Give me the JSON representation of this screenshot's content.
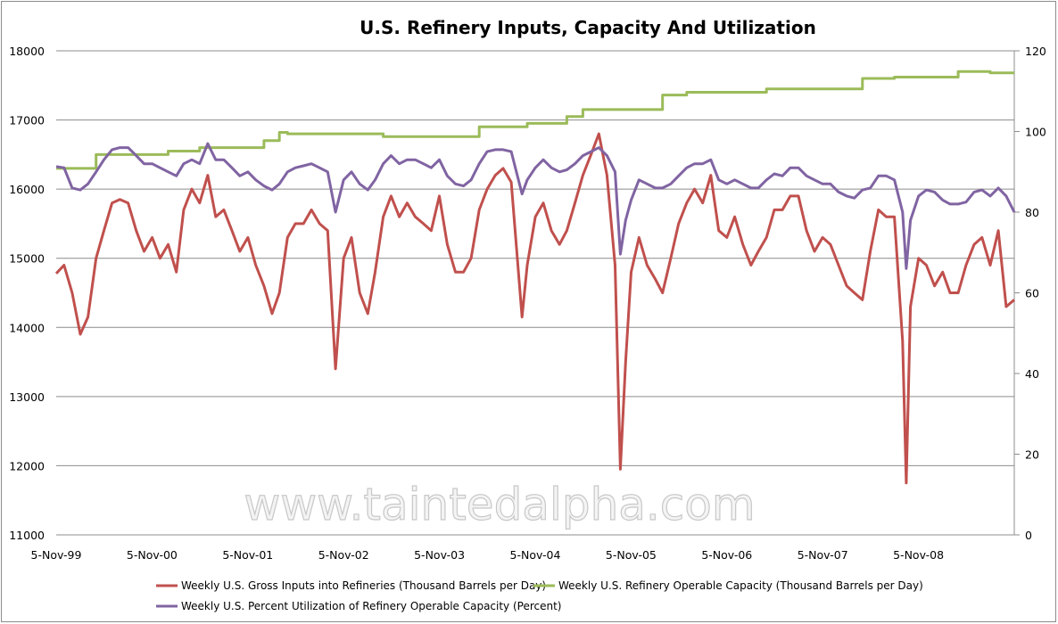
{
  "chart_data": {
    "type": "line",
    "title": "U.S. Refinery Inputs, Capacity And Utilization",
    "watermark": "www.taintedalpha.com",
    "grid": true,
    "legend_position": "bottom",
    "x_ticks": [
      "5-Nov-99",
      "5-Nov-00",
      "5-Nov-01",
      "5-Nov-02",
      "5-Nov-03",
      "5-Nov-04",
      "5-Nov-05",
      "5-Nov-06",
      "5-Nov-07",
      "5-Nov-08"
    ],
    "xlim": [
      "1999-11-05",
      "2009-11-05"
    ],
    "y_left": {
      "ylim": [
        11000,
        18000
      ],
      "ticks": [
        "11000",
        "12000",
        "13000",
        "14000",
        "15000",
        "16000",
        "17000",
        "18000"
      ]
    },
    "y_right": {
      "ylim": [
        0,
        120
      ],
      "ticks": [
        "0",
        "20",
        "40",
        "60",
        "80",
        "100",
        "120"
      ]
    },
    "colors": {
      "gross_inputs": "#C0504D",
      "capacity": "#9BBB59",
      "utilization": "#8064A2",
      "grid": "#8c8c8c"
    },
    "series": [
      {
        "name": "Weekly U.S. Gross Inputs into Refineries  (Thousand  Barrels per Day)",
        "axis": "left",
        "color": "#C0504D",
        "step": false,
        "points": [
          [
            "1999-11-05",
            14780
          ],
          [
            "1999-12-05",
            14900
          ],
          [
            "2000-01-05",
            14500
          ],
          [
            "2000-02-05",
            13900
          ],
          [
            "2000-03-05",
            14150
          ],
          [
            "2000-04-05",
            15000
          ],
          [
            "2000-05-05",
            15400
          ],
          [
            "2000-06-05",
            15800
          ],
          [
            "2000-07-05",
            15850
          ],
          [
            "2000-08-05",
            15800
          ],
          [
            "2000-09-05",
            15400
          ],
          [
            "2000-10-05",
            15100
          ],
          [
            "2000-11-05",
            15300
          ],
          [
            "2000-12-05",
            15000
          ],
          [
            "2001-01-05",
            15200
          ],
          [
            "2001-02-05",
            14800
          ],
          [
            "2001-03-05",
            15700
          ],
          [
            "2001-04-05",
            16000
          ],
          [
            "2001-05-05",
            15800
          ],
          [
            "2001-06-05",
            16200
          ],
          [
            "2001-07-05",
            15600
          ],
          [
            "2001-08-05",
            15700
          ],
          [
            "2001-09-05",
            15400
          ],
          [
            "2001-10-05",
            15100
          ],
          [
            "2001-11-05",
            15300
          ],
          [
            "2001-12-05",
            14900
          ],
          [
            "2002-01-05",
            14600
          ],
          [
            "2002-02-05",
            14200
          ],
          [
            "2002-03-05",
            14500
          ],
          [
            "2002-04-05",
            15300
          ],
          [
            "2002-05-05",
            15500
          ],
          [
            "2002-06-05",
            15500
          ],
          [
            "2002-07-05",
            15700
          ],
          [
            "2002-08-05",
            15500
          ],
          [
            "2002-09-05",
            15400
          ],
          [
            "2002-10-05",
            13400
          ],
          [
            "2002-11-05",
            15000
          ],
          [
            "2002-12-05",
            15300
          ],
          [
            "2003-01-05",
            14500
          ],
          [
            "2003-02-05",
            14200
          ],
          [
            "2003-03-05",
            14800
          ],
          [
            "2003-04-05",
            15600
          ],
          [
            "2003-05-05",
            15900
          ],
          [
            "2003-06-05",
            15600
          ],
          [
            "2003-07-05",
            15800
          ],
          [
            "2003-08-05",
            15600
          ],
          [
            "2003-09-05",
            15500
          ],
          [
            "2003-10-05",
            15400
          ],
          [
            "2003-11-05",
            15900
          ],
          [
            "2003-12-05",
            15200
          ],
          [
            "2004-01-05",
            14800
          ],
          [
            "2004-02-05",
            14800
          ],
          [
            "2004-03-05",
            15000
          ],
          [
            "2004-04-05",
            15700
          ],
          [
            "2004-05-05",
            16000
          ],
          [
            "2004-06-05",
            16200
          ],
          [
            "2004-07-05",
            16300
          ],
          [
            "2004-08-05",
            16100
          ],
          [
            "2004-09-15",
            14150
          ],
          [
            "2004-10-05",
            14900
          ],
          [
            "2004-11-05",
            15600
          ],
          [
            "2004-12-05",
            15800
          ],
          [
            "2005-01-05",
            15400
          ],
          [
            "2005-02-05",
            15200
          ],
          [
            "2005-03-05",
            15400
          ],
          [
            "2005-04-05",
            15800
          ],
          [
            "2005-05-05",
            16200
          ],
          [
            "2005-06-05",
            16500
          ],
          [
            "2005-07-05",
            16800
          ],
          [
            "2005-08-05",
            16200
          ],
          [
            "2005-09-05",
            14900
          ],
          [
            "2005-09-25",
            11950
          ],
          [
            "2005-10-15",
            13500
          ],
          [
            "2005-11-05",
            14800
          ],
          [
            "2005-12-05",
            15300
          ],
          [
            "2006-01-05",
            14900
          ],
          [
            "2006-02-05",
            14700
          ],
          [
            "2006-03-05",
            14500
          ],
          [
            "2006-04-05",
            15000
          ],
          [
            "2006-05-05",
            15500
          ],
          [
            "2006-06-05",
            15800
          ],
          [
            "2006-07-05",
            16000
          ],
          [
            "2006-08-05",
            15800
          ],
          [
            "2006-09-05",
            16200
          ],
          [
            "2006-10-05",
            15400
          ],
          [
            "2006-11-05",
            15300
          ],
          [
            "2006-12-05",
            15600
          ],
          [
            "2007-01-05",
            15200
          ],
          [
            "2007-02-05",
            14900
          ],
          [
            "2007-03-05",
            15100
          ],
          [
            "2007-04-05",
            15300
          ],
          [
            "2007-05-05",
            15700
          ],
          [
            "2007-06-05",
            15700
          ],
          [
            "2007-07-05",
            15900
          ],
          [
            "2007-08-05",
            15900
          ],
          [
            "2007-09-05",
            15400
          ],
          [
            "2007-10-05",
            15100
          ],
          [
            "2007-11-05",
            15300
          ],
          [
            "2007-12-05",
            15200
          ],
          [
            "2008-01-05",
            14900
          ],
          [
            "2008-02-05",
            14600
          ],
          [
            "2008-03-05",
            14500
          ],
          [
            "2008-04-05",
            14400
          ],
          [
            "2008-05-05",
            15100
          ],
          [
            "2008-06-05",
            15700
          ],
          [
            "2008-07-05",
            15600
          ],
          [
            "2008-08-05",
            15600
          ],
          [
            "2008-09-05",
            13800
          ],
          [
            "2008-09-19",
            11750
          ],
          [
            "2008-10-05",
            14300
          ],
          [
            "2008-11-05",
            15000
          ],
          [
            "2008-12-05",
            14900
          ],
          [
            "2009-01-05",
            14600
          ],
          [
            "2009-02-05",
            14800
          ],
          [
            "2009-03-05",
            14500
          ],
          [
            "2009-04-05",
            14500
          ],
          [
            "2009-05-05",
            14900
          ],
          [
            "2009-06-05",
            15200
          ],
          [
            "2009-07-05",
            15300
          ],
          [
            "2009-08-05",
            14900
          ],
          [
            "2009-09-05",
            15400
          ],
          [
            "2009-10-05",
            14300
          ],
          [
            "2009-11-05",
            14400
          ]
        ]
      },
      {
        "name": "Weekly U.S. Refinery Operable Capacity  (Thousand  Barrels per Day)",
        "axis": "left",
        "color": "#9BBB59",
        "step": true,
        "points": [
          [
            "1999-11-05",
            16300
          ],
          [
            "2000-04-05",
            16500
          ],
          [
            "2001-01-05",
            16550
          ],
          [
            "2001-05-05",
            16600
          ],
          [
            "2002-01-05",
            16700
          ],
          [
            "2002-03-05",
            16820
          ],
          [
            "2002-04-05",
            16800
          ],
          [
            "2003-04-05",
            16760
          ],
          [
            "2004-04-05",
            16900
          ],
          [
            "2004-10-05",
            16950
          ],
          [
            "2005-03-05",
            17050
          ],
          [
            "2005-05-05",
            17150
          ],
          [
            "2006-03-05",
            17360
          ],
          [
            "2006-06-05",
            17400
          ],
          [
            "2007-04-05",
            17450
          ],
          [
            "2008-04-05",
            17600
          ],
          [
            "2008-08-05",
            17620
          ],
          [
            "2009-04-05",
            17700
          ],
          [
            "2009-08-05",
            17680
          ],
          [
            "2009-11-05",
            17680
          ]
        ]
      },
      {
        "name": "Weekly U.S. Percent Utilization  of Refinery Operable Capacity  (Percent)",
        "axis": "right",
        "color": "#8064A2",
        "step": false,
        "points": [
          [
            "1999-11-05",
            91.3
          ],
          [
            "1999-12-05",
            91
          ],
          [
            "2000-01-05",
            86
          ],
          [
            "2000-02-05",
            85.5
          ],
          [
            "2000-03-05",
            87
          ],
          [
            "2000-04-05",
            90
          ],
          [
            "2000-05-05",
            93
          ],
          [
            "2000-06-05",
            95.5
          ],
          [
            "2000-07-05",
            96
          ],
          [
            "2000-08-05",
            96
          ],
          [
            "2000-09-05",
            94
          ],
          [
            "2000-10-05",
            92
          ],
          [
            "2000-11-05",
            92
          ],
          [
            "2000-12-05",
            91
          ],
          [
            "2001-01-05",
            90
          ],
          [
            "2001-02-05",
            89
          ],
          [
            "2001-03-05",
            92
          ],
          [
            "2001-04-05",
            93
          ],
          [
            "2001-05-05",
            92
          ],
          [
            "2001-06-05",
            97
          ],
          [
            "2001-07-05",
            93
          ],
          [
            "2001-08-05",
            93
          ],
          [
            "2001-09-05",
            91
          ],
          [
            "2001-10-05",
            89
          ],
          [
            "2001-11-05",
            90
          ],
          [
            "2001-12-05",
            88
          ],
          [
            "2002-01-05",
            86.5
          ],
          [
            "2002-02-05",
            85.5
          ],
          [
            "2002-03-05",
            87
          ],
          [
            "2002-04-05",
            90
          ],
          [
            "2002-05-05",
            91
          ],
          [
            "2002-06-05",
            91.5
          ],
          [
            "2002-07-05",
            92
          ],
          [
            "2002-08-05",
            91
          ],
          [
            "2002-09-05",
            90
          ],
          [
            "2002-10-05",
            80
          ],
          [
            "2002-11-05",
            88
          ],
          [
            "2002-12-05",
            90
          ],
          [
            "2003-01-05",
            87
          ],
          [
            "2003-02-05",
            85.5
          ],
          [
            "2003-03-05",
            88
          ],
          [
            "2003-04-05",
            92
          ],
          [
            "2003-05-05",
            94
          ],
          [
            "2003-06-05",
            92
          ],
          [
            "2003-07-05",
            93
          ],
          [
            "2003-08-05",
            93
          ],
          [
            "2003-09-05",
            92
          ],
          [
            "2003-10-05",
            91
          ],
          [
            "2003-11-05",
            93
          ],
          [
            "2003-12-05",
            89
          ],
          [
            "2004-01-05",
            87
          ],
          [
            "2004-02-05",
            86.5
          ],
          [
            "2004-03-05",
            88
          ],
          [
            "2004-04-05",
            92
          ],
          [
            "2004-05-05",
            95
          ],
          [
            "2004-06-05",
            95.5
          ],
          [
            "2004-07-05",
            95.5
          ],
          [
            "2004-08-05",
            95
          ],
          [
            "2004-09-15",
            84.5
          ],
          [
            "2004-10-05",
            88
          ],
          [
            "2004-11-05",
            91
          ],
          [
            "2004-12-05",
            93
          ],
          [
            "2005-01-05",
            91
          ],
          [
            "2005-02-05",
            90
          ],
          [
            "2005-03-05",
            90.5
          ],
          [
            "2005-04-05",
            92
          ],
          [
            "2005-05-05",
            94
          ],
          [
            "2005-06-05",
            95
          ],
          [
            "2005-07-05",
            96
          ],
          [
            "2005-08-05",
            94
          ],
          [
            "2005-09-05",
            90
          ],
          [
            "2005-09-25",
            69.6
          ],
          [
            "2005-10-15",
            78
          ],
          [
            "2005-11-05",
            83
          ],
          [
            "2005-12-05",
            88
          ],
          [
            "2006-01-05",
            87
          ],
          [
            "2006-02-05",
            86
          ],
          [
            "2006-03-05",
            86
          ],
          [
            "2006-04-05",
            87
          ],
          [
            "2006-05-05",
            89
          ],
          [
            "2006-06-05",
            91
          ],
          [
            "2006-07-05",
            92
          ],
          [
            "2006-08-05",
            92
          ],
          [
            "2006-09-05",
            93
          ],
          [
            "2006-10-05",
            88
          ],
          [
            "2006-11-05",
            87
          ],
          [
            "2006-12-05",
            88
          ],
          [
            "2007-01-05",
            87
          ],
          [
            "2007-02-05",
            86
          ],
          [
            "2007-03-05",
            86
          ],
          [
            "2007-04-05",
            88
          ],
          [
            "2007-05-05",
            89.5
          ],
          [
            "2007-06-05",
            89
          ],
          [
            "2007-07-05",
            91
          ],
          [
            "2007-08-05",
            91
          ],
          [
            "2007-09-05",
            89
          ],
          [
            "2007-10-05",
            88
          ],
          [
            "2007-11-05",
            87
          ],
          [
            "2007-12-05",
            87
          ],
          [
            "2008-01-05",
            85
          ],
          [
            "2008-02-05",
            84
          ],
          [
            "2008-03-05",
            83.5
          ],
          [
            "2008-04-05",
            85.5
          ],
          [
            "2008-05-05",
            86
          ],
          [
            "2008-06-05",
            89
          ],
          [
            "2008-07-05",
            89
          ],
          [
            "2008-08-05",
            88
          ],
          [
            "2008-09-05",
            80
          ],
          [
            "2008-09-19",
            66
          ],
          [
            "2008-10-05",
            78
          ],
          [
            "2008-11-05",
            84
          ],
          [
            "2008-12-05",
            85.5
          ],
          [
            "2009-01-05",
            85
          ],
          [
            "2009-02-05",
            83
          ],
          [
            "2009-03-05",
            82
          ],
          [
            "2009-04-05",
            82
          ],
          [
            "2009-05-05",
            82.5
          ],
          [
            "2009-06-05",
            85
          ],
          [
            "2009-07-05",
            85.5
          ],
          [
            "2009-08-05",
            84
          ],
          [
            "2009-09-05",
            86
          ],
          [
            "2009-10-05",
            84
          ],
          [
            "2009-11-05",
            80
          ]
        ]
      }
    ]
  }
}
